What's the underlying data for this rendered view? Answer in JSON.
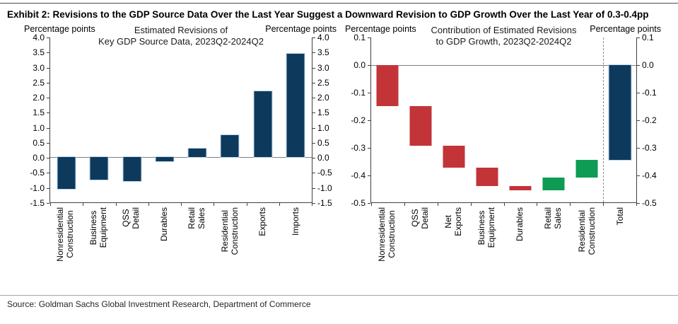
{
  "page": {
    "title": "Exhibit 2: Revisions to the GDP Source Data Over the Last Year Suggest a Downward Revision to GDP Growth Over the Last Year of 0.3-0.4pp",
    "source": "Source: Goldman Sachs Global Investment Research, Department of Commerce"
  },
  "colors": {
    "navy": "#0D3A5C",
    "red": "#C23438",
    "green": "#0E9B53",
    "axis": "#404040",
    "zero_line": "#808080",
    "bar_outline": "#BDD7EE",
    "separator": "#8C8C8C"
  },
  "chart_data": [
    {
      "type": "bar",
      "title_lines": [
        "Estimated Revisions of",
        "Key GDP Source Data, 2023Q2-2024Q2"
      ],
      "ylabel_left": "Percentage points",
      "ylabel_right": "Percentage points",
      "ylim": [
        -1.5,
        4.0
      ],
      "ytick_step": 0.5,
      "grid": false,
      "legend": "none",
      "categories": [
        [
          "Nonresidential",
          "Construction"
        ],
        [
          "Business",
          "Equipment"
        ],
        [
          "QSS",
          "Detail"
        ],
        [
          "Durables"
        ],
        [
          "Retail",
          "Sales"
        ],
        [
          "Residential",
          "Construction"
        ],
        [
          "Exports"
        ],
        [
          "Imports"
        ]
      ],
      "values": [
        -1.05,
        -0.75,
        -0.8,
        -0.14,
        0.3,
        0.75,
        2.2,
        3.45
      ],
      "bar_color": "navy"
    },
    {
      "type": "waterfall",
      "title_lines": [
        "Contribution of Estimated Revisions",
        "to GDP Growth, 2023Q2-2024Q2"
      ],
      "ylabel_left": "Percentage points",
      "ylabel_right": "Percentage points",
      "ylim": [
        -0.5,
        0.1
      ],
      "ytick_step": 0.1,
      "grid": false,
      "legend": "none",
      "categories": [
        [
          "Nonresidential",
          "Construction"
        ],
        [
          "QSS",
          "Detail"
        ],
        [
          "Net",
          "Exports"
        ],
        [
          "Business",
          "Equipment"
        ],
        [
          "Durables"
        ],
        [
          "Retail",
          "Sales"
        ],
        [
          "Residential",
          "Construction"
        ],
        [
          "Total"
        ]
      ],
      "segments": [
        {
          "start": 0,
          "end": -0.15,
          "color": "red"
        },
        {
          "start": -0.15,
          "end": -0.295,
          "color": "red"
        },
        {
          "start": -0.295,
          "end": -0.375,
          "color": "red"
        },
        {
          "start": -0.375,
          "end": -0.44,
          "color": "red"
        },
        {
          "start": -0.44,
          "end": -0.455,
          "color": "red"
        },
        {
          "start": -0.455,
          "end": -0.41,
          "color": "green"
        },
        {
          "start": -0.41,
          "end": -0.345,
          "color": "green"
        },
        {
          "start": 0,
          "end": -0.345,
          "color": "navy"
        }
      ],
      "separator_before_index": 7
    }
  ]
}
